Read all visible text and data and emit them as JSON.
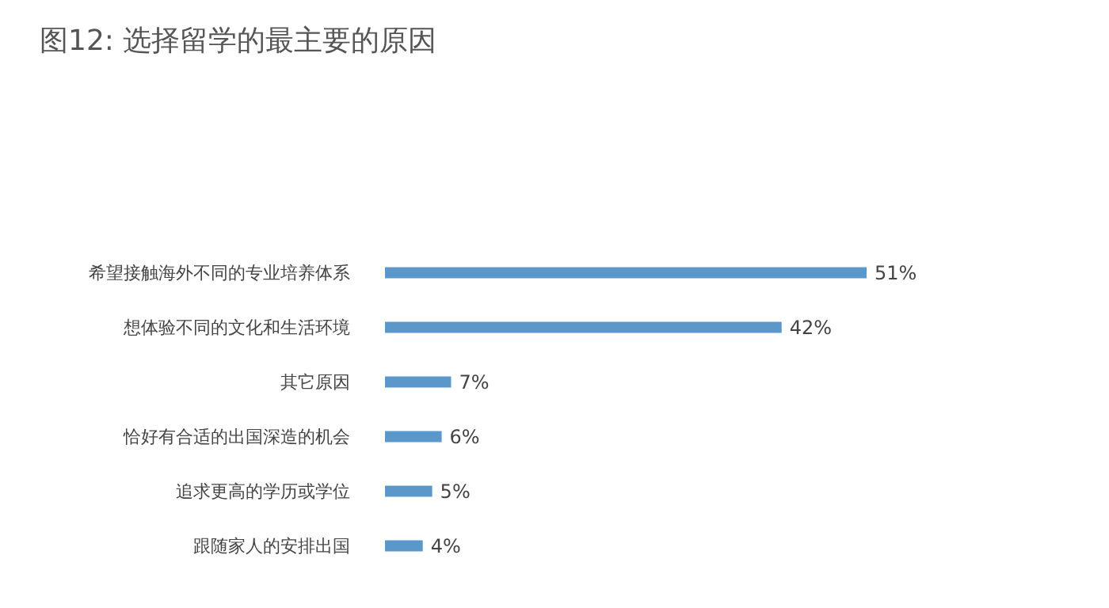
{
  "chart_data": {
    "type": "bar",
    "orientation": "horizontal",
    "title": "图12: 选择留学的最主要的原因",
    "categories": [
      "希望接触海外不同的专业培养体系",
      "想体验不同的文化和生活环境",
      "其它原因",
      "恰好有合适的出国深造的机会",
      "追求更高的学历或学位",
      "跟随家人的安排出国"
    ],
    "values": [
      51,
      42,
      7,
      6,
      5,
      4
    ],
    "value_labels": [
      "51%",
      "42%",
      "7%",
      "6%",
      "5%",
      "4%"
    ],
    "color": "#5b97c9"
  }
}
